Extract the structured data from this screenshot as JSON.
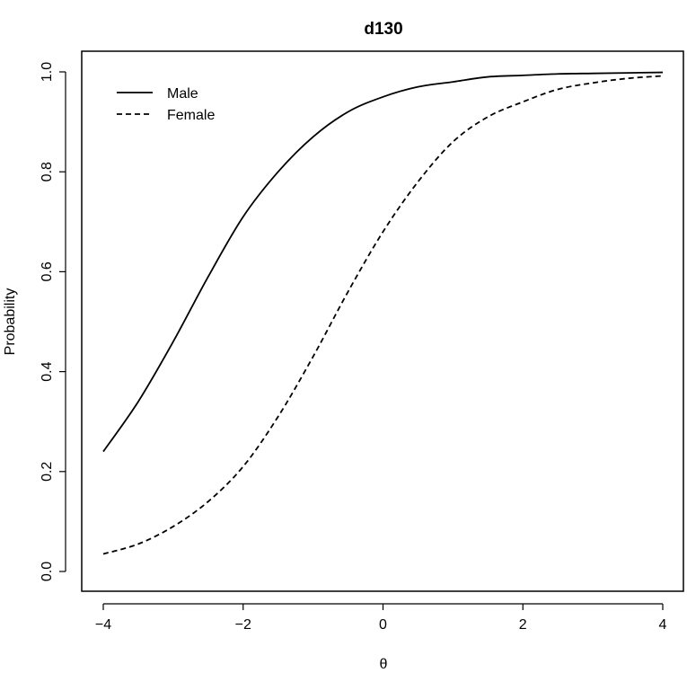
{
  "chart_data": {
    "type": "line",
    "title": "d130",
    "xlabel": "θ",
    "ylabel": "Probability",
    "xlim": [
      -4,
      4
    ],
    "ylim": [
      0,
      1
    ],
    "x_ticks": [
      -4,
      -2,
      0,
      2,
      4
    ],
    "x_tick_labels": [
      "−4",
      "−2",
      "0",
      "2",
      "4"
    ],
    "y_ticks": [
      0.0,
      0.2,
      0.4,
      0.6,
      0.8,
      1.0
    ],
    "y_tick_labels": [
      "0.0",
      "0.2",
      "0.4",
      "0.6",
      "0.8",
      "1.0"
    ],
    "grid": false,
    "legend_position": "top-left",
    "x": [
      -4,
      -3.5,
      -3,
      -2.5,
      -2,
      -1.5,
      -1,
      -0.5,
      0,
      0.5,
      1,
      1.5,
      2,
      2.5,
      3,
      3.5,
      4
    ],
    "series": [
      {
        "name": "Male",
        "line_style": "solid",
        "color": "#000000",
        "values": [
          0.24,
          0.34,
          0.46,
          0.59,
          0.71,
          0.8,
          0.87,
          0.92,
          0.95,
          0.97,
          0.98,
          0.99,
          0.993,
          0.996,
          0.997,
          0.998,
          0.999
        ]
      },
      {
        "name": "Female",
        "line_style": "dashed",
        "color": "#000000",
        "values": [
          0.035,
          0.055,
          0.09,
          0.14,
          0.21,
          0.31,
          0.43,
          0.56,
          0.68,
          0.78,
          0.86,
          0.91,
          0.94,
          0.965,
          0.978,
          0.987,
          0.992
        ]
      }
    ]
  }
}
